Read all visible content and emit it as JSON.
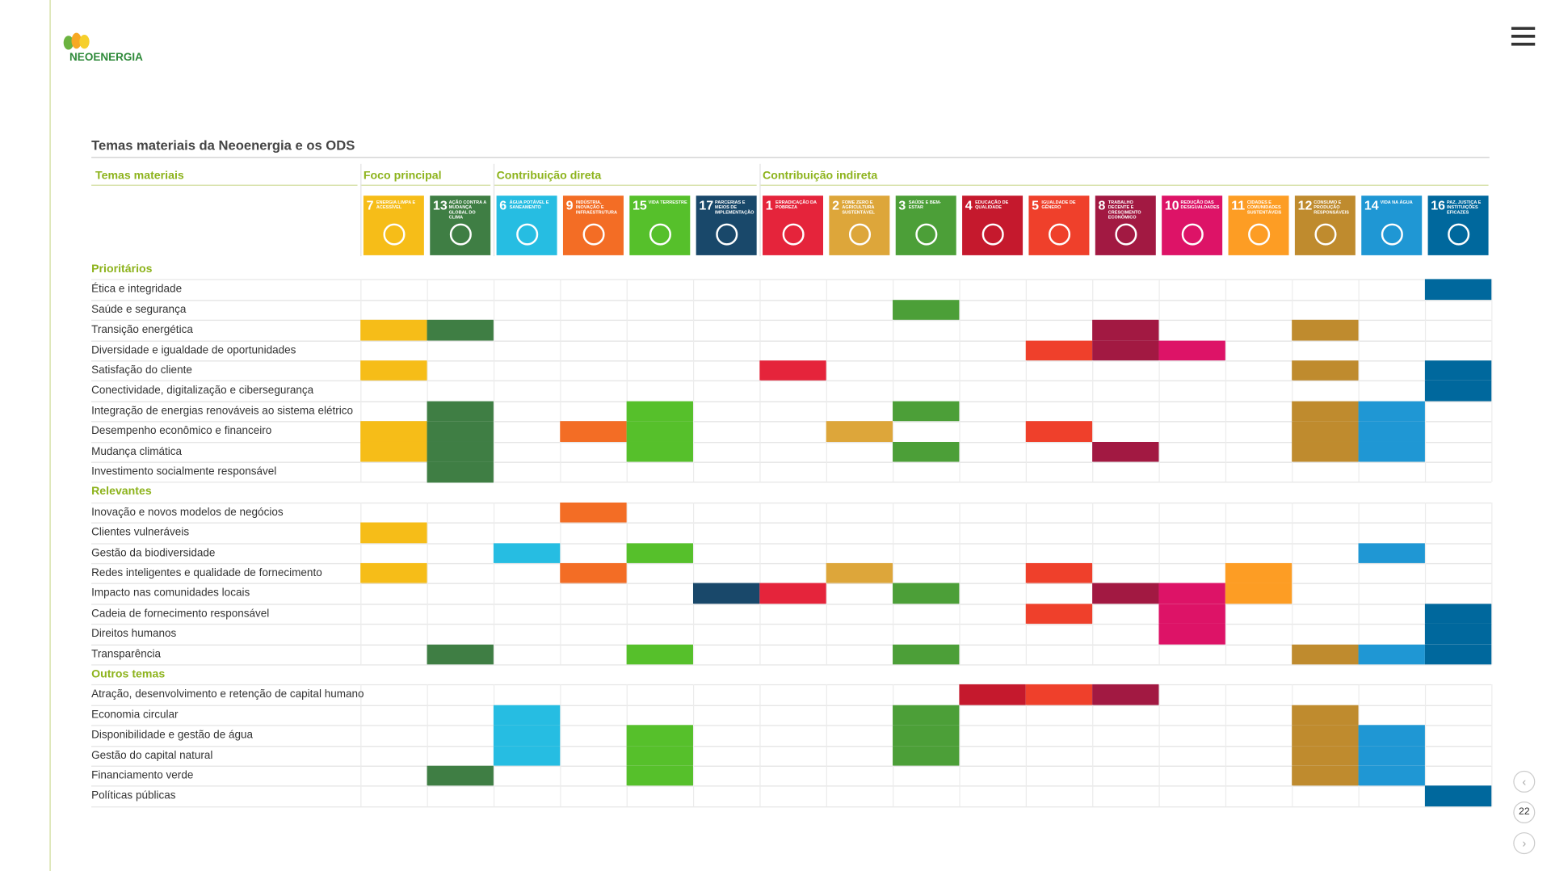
{
  "header": {
    "logo": "NEOENERGIA",
    "page": 22
  },
  "title": "Temas materiais da Neoenergia e os ODS",
  "table": {
    "label_header": "Temas materiais",
    "groups": [
      {
        "name": "Foco principal",
        "ods": [
          {
            "number": 7,
            "label": "ENERGIA LIMPA E ACESSÍVEL",
            "color": "#f6bd18"
          },
          {
            "number": 13,
            "label": "AÇÃO CONTRA A MUDANÇA GLOBAL DO CLIMA",
            "color": "#3f7e44"
          }
        ]
      },
      {
        "name": "Contribuição direta",
        "ods": [
          {
            "number": 6,
            "label": "ÁGUA POTÁVEL E SANEAMENTO",
            "color": "#26bde2"
          },
          {
            "number": 9,
            "label": "INDÚSTRIA, INOVAÇÃO E INFRAESTRUTURA",
            "color": "#f36d25"
          },
          {
            "number": 15,
            "label": "VIDA TERRESTRE",
            "color": "#56c02b"
          },
          {
            "number": 17,
            "label": "PARCERIAS E MEIOS DE IMPLEMENTAÇÃO",
            "color": "#19486a"
          }
        ]
      },
      {
        "name": "Contribuição indireta",
        "ods": [
          {
            "number": 1,
            "label": "ERRADICAÇÃO DA POBREZA",
            "color": "#e5243b"
          },
          {
            "number": 2,
            "label": "FOME ZERO E AGRICULTURA SUSTENTÁVEL",
            "color": "#dda63a"
          },
          {
            "number": 3,
            "label": "SAÚDE E BEM-ESTAR",
            "color": "#4c9f38"
          },
          {
            "number": 4,
            "label": "EDUCAÇÃO DE QUALIDADE",
            "color": "#c5192d"
          },
          {
            "number": 5,
            "label": "IGUALDADE DE GÊNERO",
            "color": "#ef402b"
          },
          {
            "number": 8,
            "label": "TRABALHO DECENTE E CRESCIMENTO ECONÔMICO",
            "color": "#a21942"
          },
          {
            "number": 10,
            "label": "REDUÇÃO DAS DESIGUALDADES",
            "color": "#dd1367"
          },
          {
            "number": 11,
            "label": "CIDADES E COMUNIDADES SUSTENTÁVEIS",
            "color": "#fd9d24"
          },
          {
            "number": 12,
            "label": "CONSUMO E PRODUÇÃO RESPONSÁVEIS",
            "color": "#bf8b2e"
          },
          {
            "number": 14,
            "label": "VIDA NA ÁGUA",
            "color": "#1f97d4"
          },
          {
            "number": 16,
            "label": "PAZ, JUSTIÇA E INSTITUIÇÕES EFICAZES",
            "color": "#00689d"
          }
        ]
      }
    ],
    "sections": [
      {
        "name": "Prioritários",
        "rows": [
          {
            "label": "Ética e integridade",
            "ods": [
              16
            ]
          },
          {
            "label": "Saúde e segurança",
            "ods": [
              3
            ]
          },
          {
            "label": "Transição energética",
            "ods": [
              7,
              13,
              8,
              12
            ]
          },
          {
            "label": "Diversidade e igualdade de oportunidades",
            "ods": [
              5,
              8,
              10
            ]
          },
          {
            "label": "Satisfação do cliente",
            "ods": [
              7,
              1,
              12,
              16
            ]
          },
          {
            "label": "Conectividade, digitalização e cibersegurança",
            "ods": [
              16
            ]
          },
          {
            "label": "Integração de energias renováveis ao sistema elétrico",
            "ods": [
              13,
              15,
              3,
              12,
              14
            ]
          },
          {
            "label": "Desempenho econômico e financeiro",
            "ods": [
              7,
              13,
              9,
              15,
              2,
              5,
              12,
              14
            ]
          },
          {
            "label": "Mudança climática",
            "ods": [
              7,
              13,
              15,
              3,
              8,
              12,
              14
            ]
          },
          {
            "label": "Investimento socialmente responsável",
            "ods": [
              13
            ]
          }
        ]
      },
      {
        "name": "Relevantes",
        "rows": [
          {
            "label": "Inovação e novos modelos de negócios",
            "ods": [
              9
            ]
          },
          {
            "label": "Clientes vulneráveis",
            "ods": [
              7
            ]
          },
          {
            "label": "Gestão da biodiversidade",
            "ods": [
              6,
              15,
              14
            ]
          },
          {
            "label": "Redes inteligentes e qualidade de fornecimento",
            "ods": [
              7,
              9,
              2,
              5,
              11
            ]
          },
          {
            "label": "Impacto nas comunidades locais",
            "ods": [
              17,
              1,
              3,
              8,
              10,
              11
            ]
          },
          {
            "label": "Cadeia de fornecimento responsável",
            "ods": [
              5,
              10,
              16
            ]
          },
          {
            "label": "Direitos humanos",
            "ods": [
              10,
              16
            ]
          },
          {
            "label": "Transparência",
            "ods": [
              13,
              15,
              3,
              12,
              14,
              16
            ]
          }
        ]
      },
      {
        "name": "Outros temas",
        "rows": [
          {
            "label": "Atração, desenvolvimento e retenção de capital humano",
            "ods": [
              4,
              5,
              8
            ]
          },
          {
            "label": "Economia circular",
            "ods": [
              6,
              3,
              12
            ]
          },
          {
            "label": "Disponibilidade e gestão de água",
            "ods": [
              6,
              15,
              3,
              12,
              14
            ]
          },
          {
            "label": "Gestão do capital natural",
            "ods": [
              6,
              15,
              3,
              12,
              14
            ]
          },
          {
            "label": "Financiamento verde",
            "ods": [
              13,
              15,
              12,
              14
            ]
          },
          {
            "label": "Políticas públicas",
            "ods": [
              16
            ]
          }
        ]
      }
    ]
  }
}
